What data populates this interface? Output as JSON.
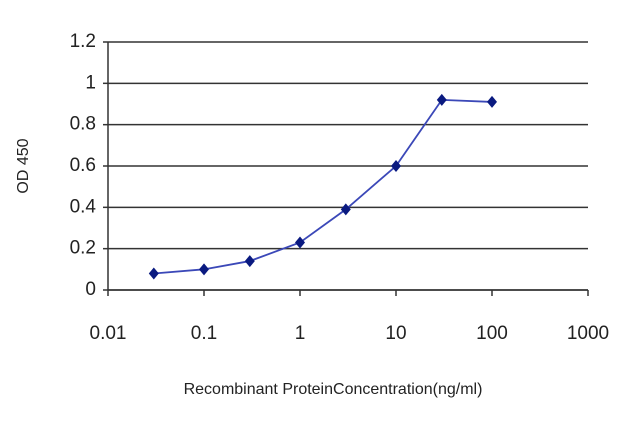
{
  "chart_data": {
    "type": "line",
    "x_label": "Recombinant ProteinConcentration(ng/ml)",
    "y_label": "OD 450",
    "x": [
      0.03,
      0.1,
      0.3,
      1,
      3,
      10,
      30,
      100
    ],
    "values": [
      0.08,
      0.1,
      0.14,
      0.23,
      0.39,
      0.6,
      0.92,
      0.91
    ],
    "color": "#3b48b8",
    "marker_color": "#0a1a80",
    "xscale": "log",
    "xlim": [
      0.01,
      1000
    ],
    "xticks": [
      0.01,
      0.1,
      1,
      10,
      100,
      1000
    ],
    "ylim": [
      0,
      1.2
    ],
    "yticks": [
      0,
      0.2,
      0.4,
      0.6,
      0.8,
      1,
      1.2
    ],
    "grid": true
  }
}
